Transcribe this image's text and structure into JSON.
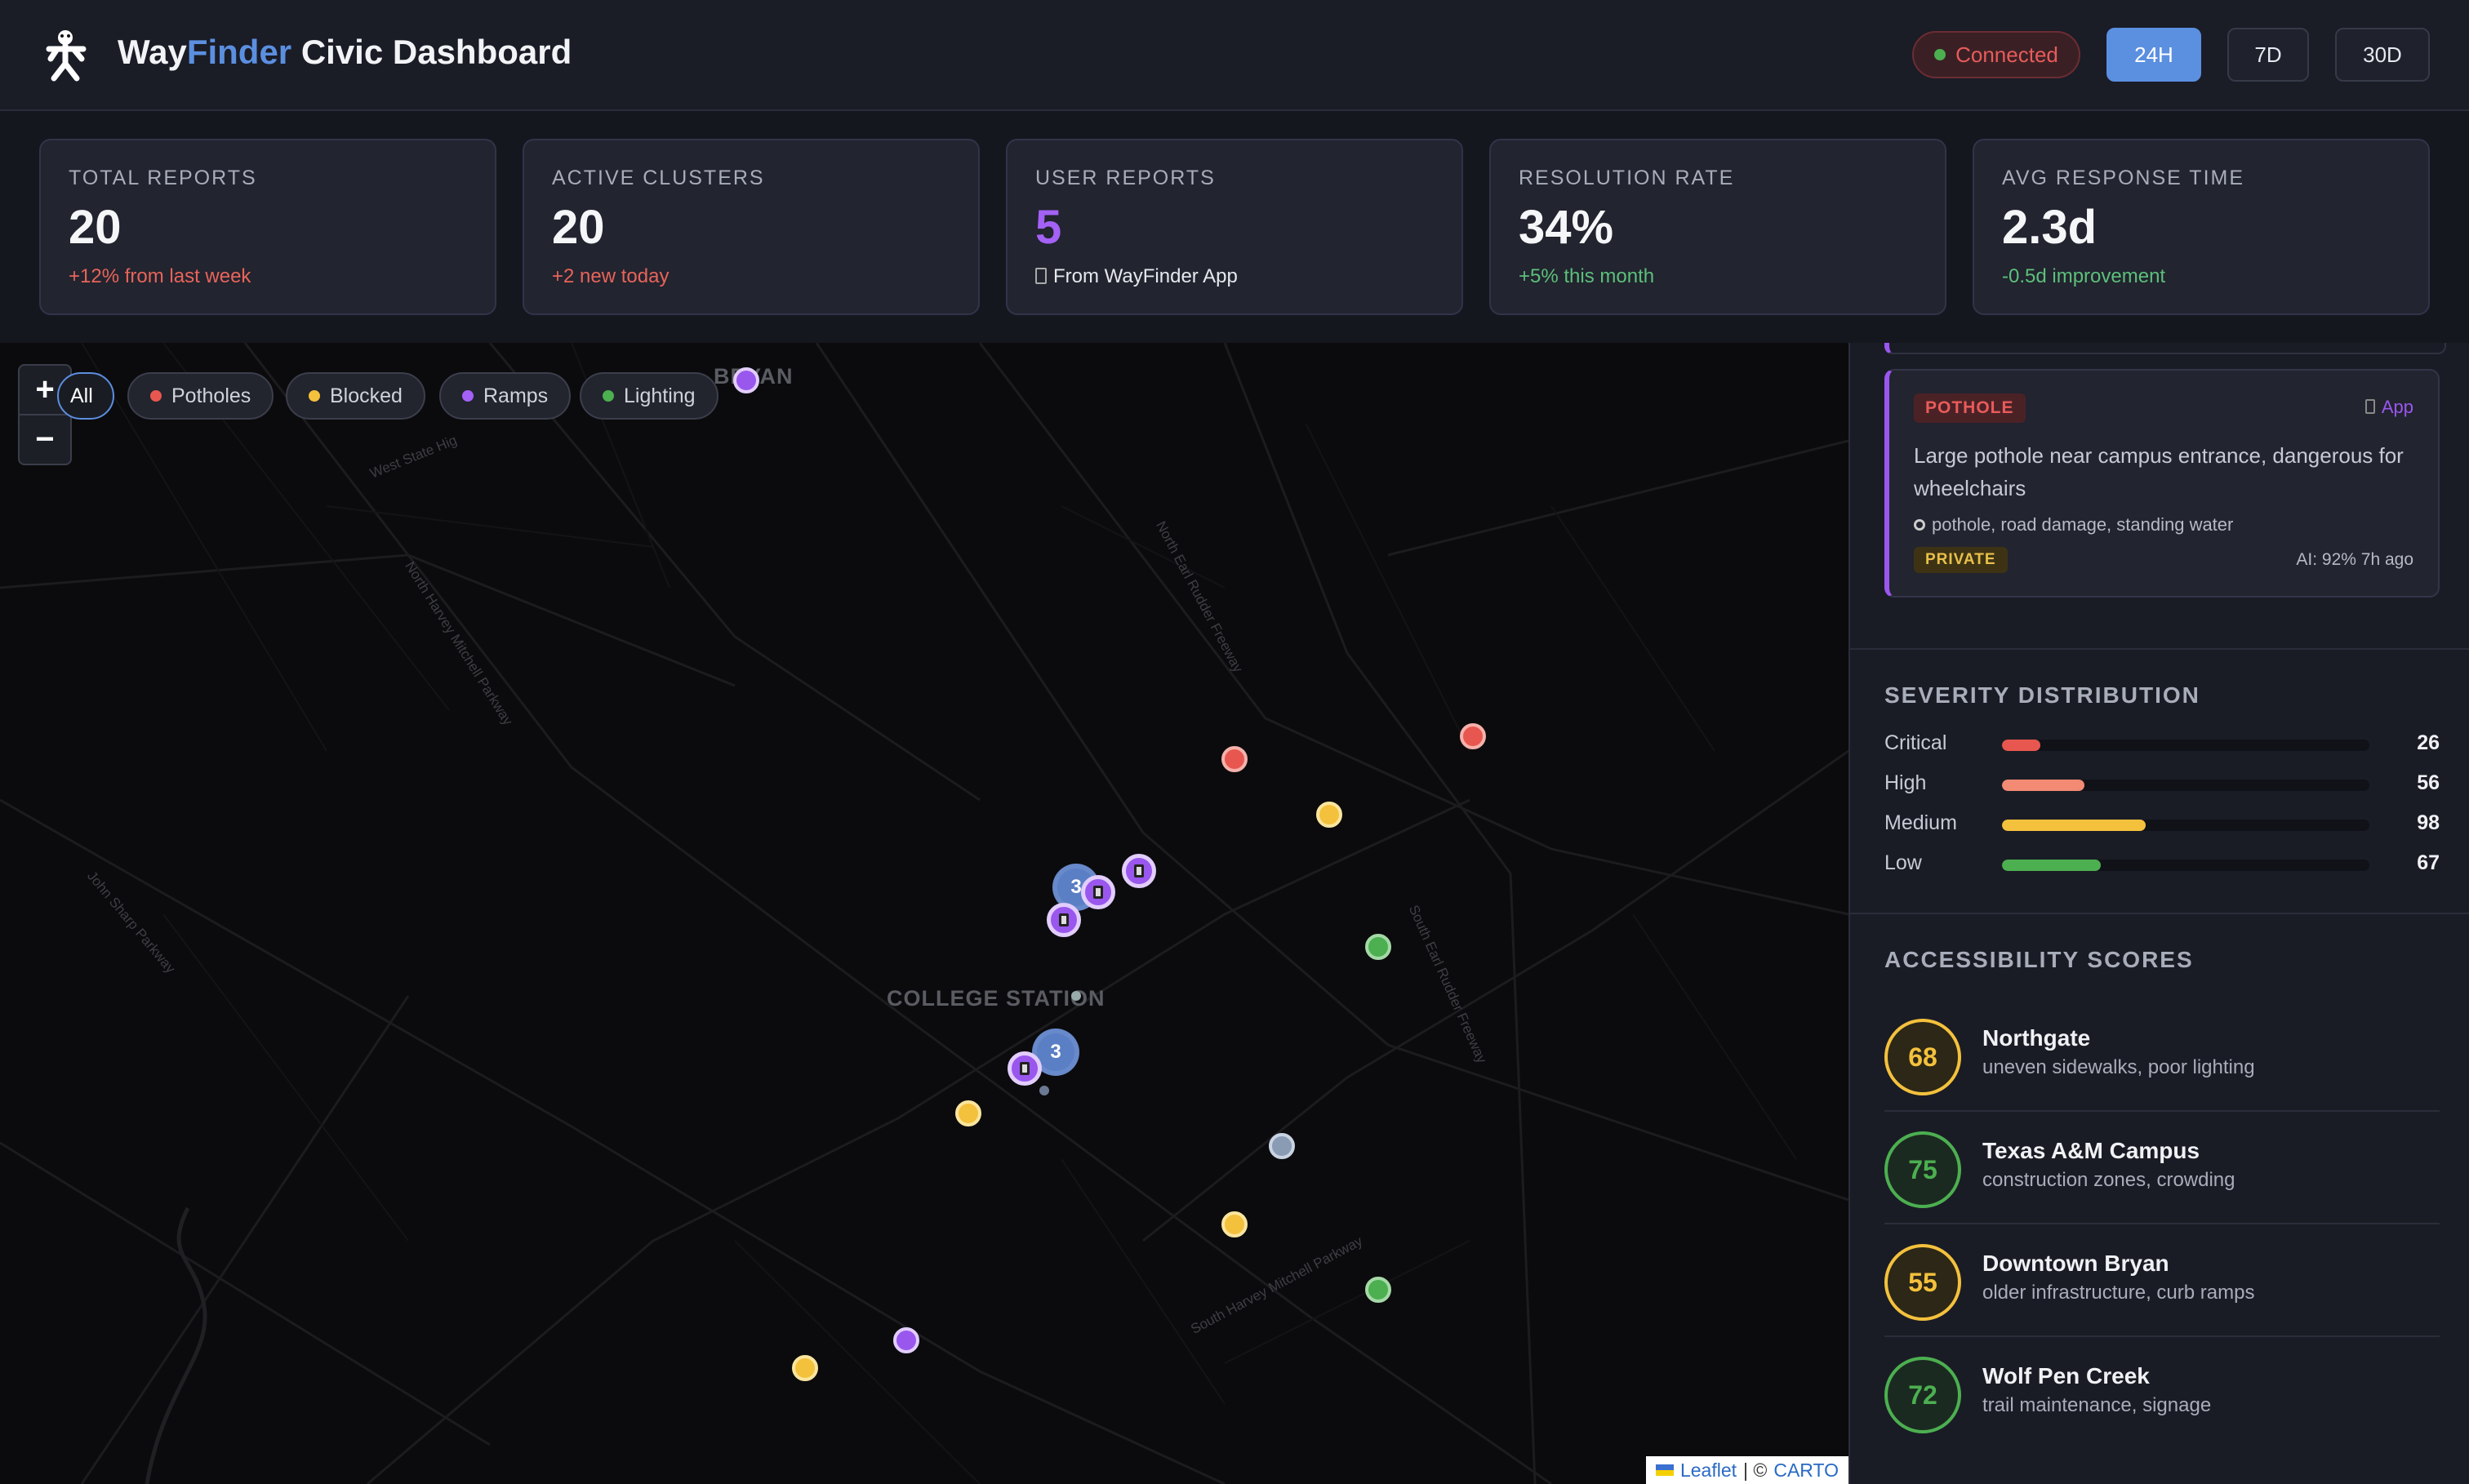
{
  "header": {
    "title_part1": "Way",
    "title_part2": "Finder",
    "title_part3": " Civic Dashboard",
    "status": "Connected",
    "ranges": [
      "24H",
      "7D",
      "30D"
    ],
    "active_range": "24H"
  },
  "stats": [
    {
      "label": "TOTAL REPORTS",
      "value": "20",
      "sub": "+12% from last week"
    },
    {
      "label": "ACTIVE CLUSTERS",
      "value": "20",
      "sub": "+2 new today"
    },
    {
      "label": "USER REPORTS",
      "value": "5",
      "sub": "From WayFinder App"
    },
    {
      "label": "RESOLUTION RATE",
      "value": "34%",
      "sub": "+5% this month"
    },
    {
      "label": "AVG RESPONSE TIME",
      "value": "2.3d",
      "sub": "-0.5d improvement"
    }
  ],
  "map": {
    "filters": [
      {
        "label": "All",
        "color": ""
      },
      {
        "label": "Potholes",
        "color": "#e8574f"
      },
      {
        "label": "Blocked",
        "color": "#f4c13d"
      },
      {
        "label": "Ramps",
        "color": "#a461f5"
      },
      {
        "label": "Lighting",
        "color": "#4caf50"
      }
    ],
    "zoom_in": "+",
    "zoom_out": "−",
    "place_labels": [
      "BRYAN",
      "COLLEGE STATION"
    ],
    "road_labels": [
      "West State Hig",
      "North Harvey Mitchell Parkway",
      "North Earl Rudder Freeway",
      "South Earl Rudder Freeway",
      "John Sharp Parkway",
      "South Harvey Mitchell Parkway"
    ],
    "clusters": [
      "3",
      "3"
    ],
    "attribution": {
      "leaflet": "Leaflet",
      "sep": " | © ",
      "carto": "CARTO"
    }
  },
  "report": {
    "type": "POTHOLE",
    "source": "App",
    "description": "Large pothole near campus entrance, dangerous for wheelchairs",
    "tags": "pothole, road damage, standing water",
    "visibility": "PRIVATE",
    "meta": "AI: 92% 7h ago"
  },
  "severity": {
    "title": "SEVERITY DISTRIBUTION",
    "max": 250,
    "rows": [
      {
        "label": "Critical",
        "count": "26",
        "value": 26,
        "color": "#e8574f"
      },
      {
        "label": "High",
        "count": "56",
        "value": 56,
        "color": "#f28a74"
      },
      {
        "label": "Medium",
        "count": "98",
        "value": 98,
        "color": "#f4c13d"
      },
      {
        "label": "Low",
        "count": "67",
        "value": 67,
        "color": "#4caf50"
      }
    ]
  },
  "accessibility": {
    "title": "ACCESSIBILITY SCORES",
    "rows": [
      {
        "score": "68",
        "name": "Northgate",
        "desc": "uneven sidewalks, poor lighting",
        "color": "#f4c13d"
      },
      {
        "score": "75",
        "name": "Texas A&M Campus",
        "desc": "construction zones, crowding",
        "color": "#4caf50"
      },
      {
        "score": "55",
        "name": "Downtown Bryan",
        "desc": "older infrastructure, curb ramps",
        "color": "#f4c13d"
      },
      {
        "score": "72",
        "name": "Wolf Pen Creek",
        "desc": "trail maintenance, signage",
        "color": "#4caf50"
      }
    ]
  }
}
